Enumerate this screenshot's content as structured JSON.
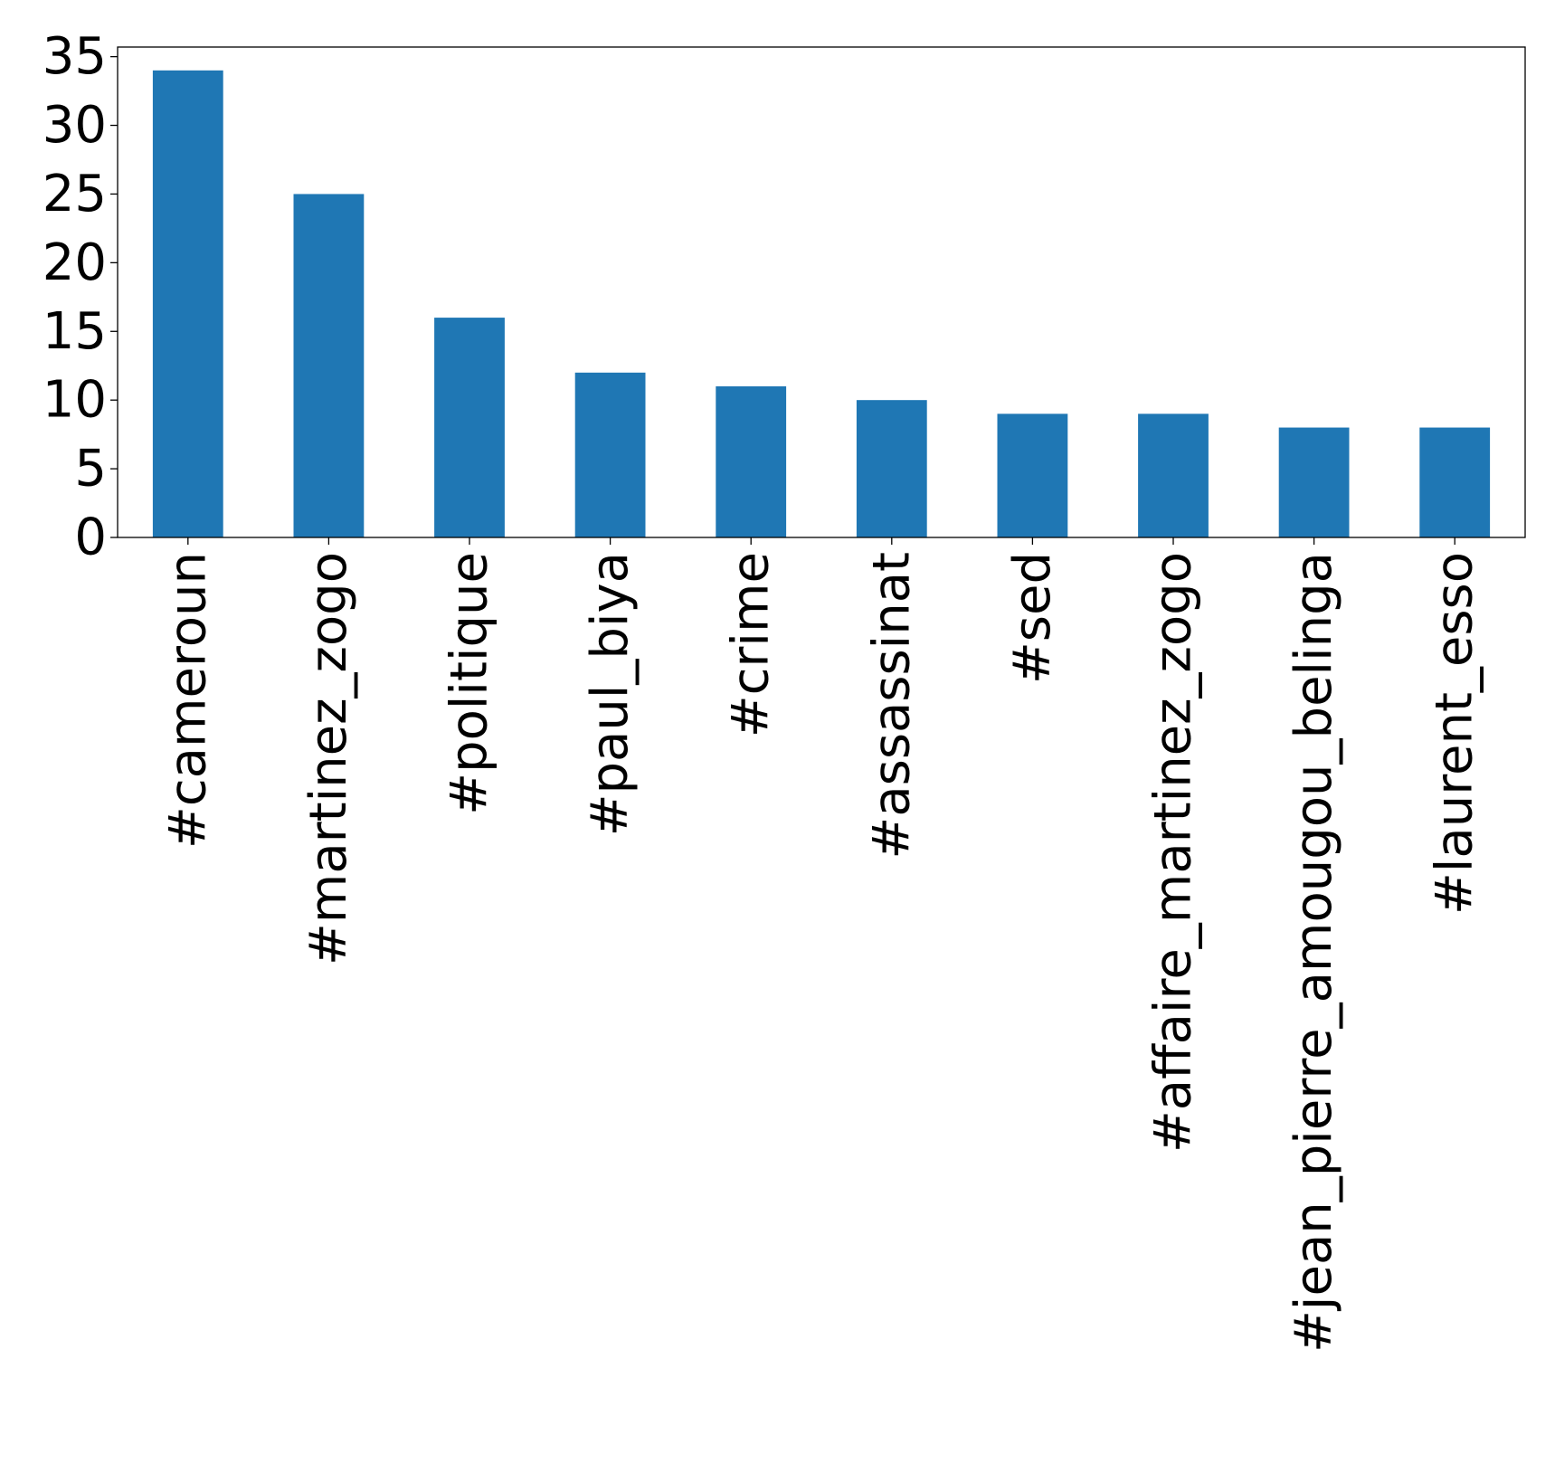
{
  "chart_data": {
    "type": "bar",
    "categories": [
      "#cameroun",
      "#martinez_zogo",
      "#politique",
      "#paul_biya",
      "#crime",
      "#assassinat",
      "#sed",
      "#affaire_martinez_zogo",
      "#jean_pierre_amougou_belinga",
      "#laurent_esso"
    ],
    "values": [
      34,
      25,
      16,
      12,
      11,
      10,
      9,
      9,
      8,
      8
    ],
    "yticks": [
      "0",
      "5",
      "10",
      "15",
      "20",
      "25",
      "30",
      "35"
    ],
    "ylim": [
      0,
      35.7
    ],
    "title": "",
    "xlabel": "",
    "ylabel": "",
    "bar_color": "#1f77b4",
    "grid": false,
    "legend": "none"
  }
}
